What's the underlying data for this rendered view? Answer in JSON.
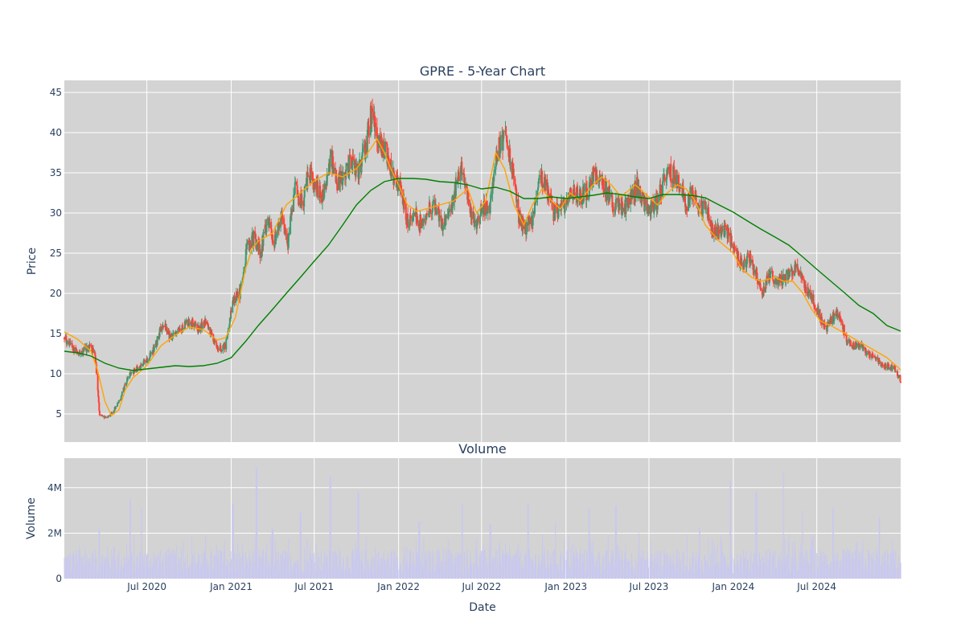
{
  "chart_data": [
    {
      "type": "candlestick",
      "title": "GPRE - 5-Year Chart",
      "ylabel": "Price",
      "ylim": [
        1.5,
        46.5
      ],
      "yticks": [
        5,
        10,
        15,
        20,
        25,
        30,
        35,
        40,
        45
      ],
      "xlim": [
        "2020-01-03",
        "2024-12-31"
      ],
      "grid": true,
      "colors": {
        "up": "#3d9970",
        "down": "#ff4136",
        "background": "#d3d3d3",
        "grid": "#ffffff"
      },
      "series": [
        {
          "kind": "close",
          "x": [
            "2020-01-03",
            "2020-02-01",
            "2020-03-01",
            "2020-03-10",
            "2020-03-20",
            "2020-04-05",
            "2020-04-20",
            "2020-05-05",
            "2020-05-20",
            "2020-06-05",
            "2020-06-20",
            "2020-07-05",
            "2020-07-20",
            "2020-08-05",
            "2020-08-20",
            "2020-09-05",
            "2020-09-20",
            "2020-10-05",
            "2020-10-20",
            "2020-11-05",
            "2020-11-20",
            "2020-12-05",
            "2020-12-20",
            "2021-01-05",
            "2021-01-20",
            "2021-02-05",
            "2021-02-20",
            "2021-03-05",
            "2021-03-20",
            "2021-04-05",
            "2021-04-20",
            "2021-05-05",
            "2021-05-20",
            "2021-06-05",
            "2021-06-20",
            "2021-07-05",
            "2021-07-20",
            "2021-08-05",
            "2021-08-20",
            "2021-09-05",
            "2021-09-20",
            "2021-10-05",
            "2021-10-20",
            "2021-11-01",
            "2021-11-10",
            "2021-11-20",
            "2021-12-05",
            "2021-12-20",
            "2022-01-05",
            "2022-01-20",
            "2022-02-05",
            "2022-02-20",
            "2022-03-05",
            "2022-03-20",
            "2022-04-05",
            "2022-04-20",
            "2022-05-05",
            "2022-05-20",
            "2022-06-05",
            "2022-06-20",
            "2022-07-05",
            "2022-07-20",
            "2022-08-05",
            "2022-08-20",
            "2022-09-05",
            "2022-09-20",
            "2022-10-05",
            "2022-10-20",
            "2022-11-05",
            "2022-11-20",
            "2022-12-05",
            "2022-12-20",
            "2023-01-05",
            "2023-01-20",
            "2023-02-05",
            "2023-02-20",
            "2023-03-05",
            "2023-03-20",
            "2023-04-05",
            "2023-04-20",
            "2023-05-05",
            "2023-05-20",
            "2023-06-05",
            "2023-06-20",
            "2023-07-05",
            "2023-07-20",
            "2023-08-05",
            "2023-08-20",
            "2023-09-05",
            "2023-09-20",
            "2023-10-05",
            "2023-10-20",
            "2023-11-05",
            "2023-11-20",
            "2023-12-05",
            "2023-12-20",
            "2024-01-05",
            "2024-01-20",
            "2024-02-05",
            "2024-02-20",
            "2024-03-05",
            "2024-03-20",
            "2024-04-05",
            "2024-04-20",
            "2024-05-05",
            "2024-05-20",
            "2024-06-05",
            "2024-06-20",
            "2024-07-05",
            "2024-07-20",
            "2024-08-05",
            "2024-08-20",
            "2024-09-05",
            "2024-09-20",
            "2024-10-05",
            "2024-10-20",
            "2024-11-05",
            "2024-11-20",
            "2024-12-05",
            "2024-12-20",
            "2024-12-31"
          ],
          "y": [
            14.5,
            12.5,
            13.5,
            12.5,
            4.8,
            4.5,
            5.5,
            7.0,
            9.5,
            10.5,
            11.0,
            12.0,
            13.5,
            16.5,
            14.5,
            15.0,
            16.0,
            16.5,
            15.5,
            16.5,
            14.5,
            13.0,
            13.5,
            19.0,
            20.0,
            26.0,
            27.0,
            25.0,
            29.0,
            26.5,
            29.5,
            26.5,
            33.0,
            31.0,
            35.0,
            33.5,
            32.0,
            37.0,
            34.0,
            34.5,
            36.5,
            35.0,
            38.0,
            42.0,
            41.0,
            38.5,
            37.5,
            34.5,
            33.0,
            29.0,
            30.0,
            28.5,
            30.5,
            31.0,
            28.5,
            30.0,
            33.0,
            36.0,
            30.0,
            28.5,
            30.5,
            31.0,
            38.0,
            39.5,
            36.0,
            29.5,
            28.0,
            29.5,
            34.5,
            33.0,
            30.0,
            30.5,
            31.5,
            32.5,
            32.0,
            33.0,
            35.0,
            34.0,
            32.0,
            31.0,
            30.5,
            31.5,
            33.5,
            31.0,
            30.5,
            31.5,
            34.5,
            35.0,
            33.5,
            31.0,
            33.0,
            31.0,
            30.0,
            27.5,
            28.0,
            27.5,
            25.0,
            23.5,
            24.5,
            22.0,
            20.0,
            22.5,
            21.5,
            22.0,
            22.5,
            23.0,
            21.0,
            19.5,
            17.5,
            15.5,
            17.0,
            17.5,
            14.0,
            13.5,
            13.5,
            12.5,
            12.0,
            11.0,
            11.0,
            10.5,
            9.0
          ]
        },
        {
          "kind": "moving-average",
          "color": "#ffa500",
          "x": [
            "2020-01-03",
            "2020-02-01",
            "2020-03-01",
            "2020-03-15",
            "2020-04-01",
            "2020-04-15",
            "2020-05-01",
            "2020-05-15",
            "2020-06-01",
            "2020-07-01",
            "2020-08-01",
            "2020-09-01",
            "2020-10-01",
            "2020-11-01",
            "2020-12-01",
            "2020-12-20",
            "2021-01-10",
            "2021-02-01",
            "2021-02-15",
            "2021-03-01",
            "2021-04-01",
            "2021-05-01",
            "2021-06-01",
            "2021-07-01",
            "2021-08-01",
            "2021-09-01",
            "2021-10-01",
            "2021-11-01",
            "2021-11-15",
            "2021-12-01",
            "2021-12-15",
            "2022-01-01",
            "2022-01-20",
            "2022-02-10",
            "2022-03-01",
            "2022-04-01",
            "2022-05-01",
            "2022-06-01",
            "2022-06-20",
            "2022-07-10",
            "2022-08-01",
            "2022-08-20",
            "2022-09-10",
            "2022-10-01",
            "2022-10-20",
            "2022-11-10",
            "2022-12-01",
            "2022-12-20",
            "2023-01-10",
            "2023-02-01",
            "2023-03-01",
            "2023-03-20",
            "2023-04-10",
            "2023-05-01",
            "2023-06-01",
            "2023-07-01",
            "2023-07-20",
            "2023-08-10",
            "2023-09-01",
            "2023-09-20",
            "2023-10-10",
            "2023-11-01",
            "2023-12-01",
            "2024-01-01",
            "2024-01-20",
            "2024-02-10",
            "2024-03-01",
            "2024-04-01",
            "2024-04-20",
            "2024-05-10",
            "2024-06-01",
            "2024-06-20",
            "2024-07-10",
            "2024-08-01",
            "2024-09-01",
            "2024-10-01",
            "2024-11-01",
            "2024-12-01",
            "2024-12-31"
          ],
          "y": [
            15.2,
            14.3,
            12.8,
            10.5,
            6.5,
            4.8,
            5.5,
            8.0,
            9.5,
            11.0,
            13.5,
            14.8,
            15.8,
            15.5,
            14.2,
            14.5,
            17.0,
            23.0,
            25.5,
            26.5,
            27.5,
            31.0,
            32.5,
            34.0,
            35.0,
            34.5,
            35.5,
            38.0,
            39.2,
            37.5,
            35.5,
            33.5,
            31.0,
            30.2,
            30.5,
            31.0,
            31.5,
            33.0,
            30.0,
            31.5,
            37.5,
            35.5,
            31.0,
            28.5,
            31.0,
            33.0,
            31.5,
            30.5,
            32.5,
            31.5,
            33.5,
            34.5,
            33.5,
            32.0,
            33.5,
            32.0,
            31.0,
            32.5,
            33.5,
            33.0,
            31.5,
            28.5,
            26.5,
            25.0,
            23.0,
            22.0,
            21.5,
            22.0,
            21.5,
            21.5,
            20.0,
            18.0,
            16.5,
            16.0,
            15.0,
            14.0,
            13.0,
            12.0,
            10.5
          ]
        },
        {
          "kind": "moving-average",
          "color": "#008000",
          "x": [
            "2020-01-03",
            "2020-02-01",
            "2020-03-01",
            "2020-04-01",
            "2020-05-01",
            "2020-06-01",
            "2020-07-01",
            "2020-08-01",
            "2020-09-01",
            "2020-10-01",
            "2020-11-01",
            "2020-12-01",
            "2021-01-01",
            "2021-02-01",
            "2021-03-01",
            "2021-04-01",
            "2021-05-01",
            "2021-06-01",
            "2021-07-01",
            "2021-08-01",
            "2021-09-01",
            "2021-10-01",
            "2021-11-01",
            "2021-12-01",
            "2022-01-01",
            "2022-02-01",
            "2022-03-01",
            "2022-04-01",
            "2022-05-01",
            "2022-06-01",
            "2022-07-01",
            "2022-08-01",
            "2022-09-01",
            "2022-10-01",
            "2022-11-01",
            "2022-12-01",
            "2023-01-01",
            "2023-02-01",
            "2023-03-01",
            "2023-04-01",
            "2023-05-01",
            "2023-06-01",
            "2023-07-01",
            "2023-08-01",
            "2023-09-01",
            "2023-10-01",
            "2023-11-01",
            "2023-12-01",
            "2024-01-01",
            "2024-02-01",
            "2024-03-01",
            "2024-04-01",
            "2024-05-01",
            "2024-06-01",
            "2024-07-01",
            "2024-08-01",
            "2024-09-01",
            "2024-10-01",
            "2024-11-01",
            "2024-12-01",
            "2024-12-31"
          ],
          "y": [
            12.8,
            12.6,
            12.2,
            11.3,
            10.7,
            10.4,
            10.6,
            10.8,
            11.0,
            10.9,
            11.0,
            11.3,
            12.0,
            14.0,
            16.0,
            18.0,
            20.0,
            22.0,
            24.0,
            26.0,
            28.5,
            31.0,
            32.8,
            33.9,
            34.3,
            34.3,
            34.2,
            33.9,
            33.8,
            33.5,
            33.0,
            33.2,
            32.7,
            31.8,
            31.8,
            32.0,
            31.8,
            32.0,
            32.2,
            32.5,
            32.3,
            32.0,
            31.8,
            32.3,
            32.3,
            32.2,
            31.9,
            31.0,
            30.1,
            29.0,
            28.0,
            27.0,
            26.0,
            24.5,
            23.0,
            21.5,
            20.0,
            18.5,
            17.5,
            16.0,
            15.3
          ]
        }
      ]
    },
    {
      "type": "bar",
      "title": "Volume",
      "xlabel": "Date",
      "ylabel": "Volume",
      "ylim": [
        0,
        5300000
      ],
      "yticks": [
        0,
        2000000,
        4000000
      ],
      "yticklabels": [
        "0",
        "2M",
        "4M"
      ],
      "xticks": [
        "2020-07-01",
        "2021-01-01",
        "2021-07-01",
        "2022-01-01",
        "2022-07-01",
        "2023-01-01",
        "2023-07-01",
        "2024-01-01",
        "2024-07-01"
      ],
      "xticklabels": [
        "Jul 2020",
        "Jan 2021",
        "Jul 2021",
        "Jan 2022",
        "Jul 2022",
        "Jan 2023",
        "Jul 2023",
        "Jan 2024",
        "Jul 2024"
      ],
      "grid": true,
      "colors": {
        "bar": "#c8c8f0"
      },
      "peaks": [
        {
          "x": "2020-03-20",
          "y": 2200000
        },
        {
          "x": "2020-04-20",
          "y": 1400000
        },
        {
          "x": "2020-05-25",
          "y": 3500000
        },
        {
          "x": "2020-06-20",
          "y": 3100000
        },
        {
          "x": "2020-08-15",
          "y": 1200000
        },
        {
          "x": "2020-12-10",
          "y": 1200000
        },
        {
          "x": "2021-01-05",
          "y": 3300000
        },
        {
          "x": "2021-02-25",
          "y": 4900000
        },
        {
          "x": "2021-04-01",
          "y": 2200000
        },
        {
          "x": "2021-06-01",
          "y": 2900000
        },
        {
          "x": "2021-08-05",
          "y": 4500000
        },
        {
          "x": "2021-10-05",
          "y": 3800000
        },
        {
          "x": "2022-02-15",
          "y": 2500000
        },
        {
          "x": "2022-05-20",
          "y": 3300000
        },
        {
          "x": "2022-07-20",
          "y": 2400000
        },
        {
          "x": "2022-10-10",
          "y": 3300000
        },
        {
          "x": "2022-12-10",
          "y": 2500000
        },
        {
          "x": "2023-02-20",
          "y": 3100000
        },
        {
          "x": "2023-04-20",
          "y": 3200000
        },
        {
          "x": "2023-06-10",
          "y": 2000000
        },
        {
          "x": "2023-10-20",
          "y": 2200000
        },
        {
          "x": "2023-12-25",
          "y": 4300000
        },
        {
          "x": "2024-02-20",
          "y": 3800000
        },
        {
          "x": "2024-04-20",
          "y": 4700000
        },
        {
          "x": "2024-06-01",
          "y": 3000000
        },
        {
          "x": "2024-08-05",
          "y": 3100000
        },
        {
          "x": "2024-11-15",
          "y": 2700000
        }
      ],
      "typical_range": [
        200000,
        1300000
      ]
    }
  ]
}
